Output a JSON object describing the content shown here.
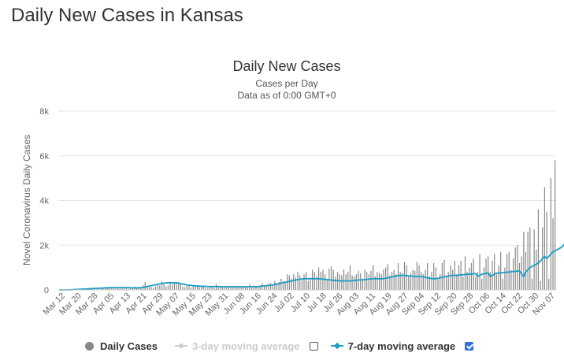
{
  "page": {
    "title": "Daily New Cases in Kansas"
  },
  "chart_data": {
    "type": "bar",
    "title": "Daily New Cases",
    "subtitle": "Cases per Day",
    "subtitle2": "Data as of 0:00 GMT+0",
    "ylabel": "Novel Coronavirus Daily Cases",
    "xlabel": "",
    "ylim": [
      0,
      8000
    ],
    "yticks": [
      0,
      2000,
      4000,
      6000,
      8000
    ],
    "ytick_labels": [
      "0",
      "2k",
      "4k",
      "6k",
      "8k"
    ],
    "grid": true,
    "date_range": [
      "Mar 12",
      "Nov 12"
    ],
    "xtick_labels": [
      "Mar 12",
      "Mar 20",
      "Mar 28",
      "Apr 05",
      "Apr 13",
      "Apr 21",
      "Apr 29",
      "May 07",
      "May 15",
      "May 23",
      "May 31",
      "Jun 08",
      "Jun 16",
      "Jun 24",
      "Jul 02",
      "Jul 10",
      "Jul 18",
      "Jul 26",
      "Aug 03",
      "Aug 11",
      "Aug 19",
      "Aug 27",
      "Sep 04",
      "Sep 12",
      "Sep 20",
      "Sep 28",
      "Oct 06",
      "Oct 14",
      "Oct 22",
      "Oct 30",
      "Nov 07"
    ],
    "series": [
      {
        "name": "Daily Cases",
        "type": "bar",
        "color": "#888888",
        "values": [
          0,
          0,
          0,
          0,
          0,
          10,
          15,
          20,
          25,
          30,
          40,
          45,
          50,
          60,
          55,
          65,
          70,
          80,
          85,
          90,
          95,
          100,
          105,
          110,
          90,
          120,
          100,
          110,
          90,
          85,
          100,
          120,
          110,
          60,
          80,
          90,
          150,
          120,
          100,
          80,
          200,
          350,
          180,
          120,
          130,
          100,
          150,
          250,
          200,
          400,
          300,
          150,
          200,
          350,
          250,
          300,
          320,
          350,
          250,
          150,
          120,
          180,
          200,
          100,
          180,
          150,
          220,
          120,
          200,
          140,
          90,
          80,
          120,
          150,
          100,
          250,
          130,
          170,
          120,
          110,
          150,
          110,
          150,
          120,
          100,
          120,
          160,
          130,
          150,
          140,
          110,
          250,
          130,
          200,
          120,
          150,
          200,
          300,
          160,
          220,
          250,
          300,
          200,
          400,
          300,
          350,
          500,
          400,
          350,
          700,
          650,
          500,
          700,
          550,
          800,
          650,
          450,
          700,
          800,
          400,
          550,
          900,
          800,
          600,
          1000,
          800,
          900,
          700,
          500,
          950,
          1050,
          900,
          600,
          800,
          700,
          650,
          900,
          700,
          800,
          1100,
          650,
          600,
          700,
          850,
          750,
          500,
          900,
          800,
          700,
          850,
          1100,
          600,
          800,
          750,
          700,
          900,
          1000,
          1150,
          650,
          800,
          900,
          700,
          1200,
          800,
          750,
          1250,
          1100,
          650,
          750,
          900,
          850,
          1250,
          1100,
          800,
          700,
          900,
          1200,
          600,
          800,
          1200,
          1000,
          500,
          700,
          1200,
          1350,
          600,
          800,
          1100,
          900,
          1300,
          700,
          1100,
          1300,
          600,
          1500,
          800,
          1000,
          1200,
          1400,
          600,
          800,
          1600,
          500,
          1000,
          1400,
          1500,
          800,
          1300,
          1600,
          700,
          1100,
          1700,
          500,
          1000,
          1600,
          1700,
          900,
          1400,
          1900,
          2000,
          1200,
          1500,
          2600,
          1700,
          2600,
          2800,
          500,
          2700,
          1800,
          3600,
          400,
          2800,
          4600,
          3500,
          500,
          5000,
          3200,
          5800
        ]
      },
      {
        "name": "3-day moving average",
        "type": "line",
        "color": "#cccccc",
        "visible": false
      },
      {
        "name": "7-day moving average",
        "type": "line",
        "color": "#1a9dc4",
        "values": [
          0,
          0,
          0,
          0,
          0,
          5,
          10,
          15,
          20,
          25,
          30,
          35,
          40,
          45,
          50,
          55,
          60,
          65,
          70,
          75,
          80,
          85,
          90,
          95,
          95,
          100,
          100,
          100,
          100,
          100,
          100,
          100,
          100,
          100,
          95,
          90,
          90,
          90,
          95,
          100,
          110,
          130,
          150,
          170,
          190,
          210,
          230,
          250,
          270,
          290,
          300,
          310,
          320,
          320,
          320,
          320,
          320,
          300,
          280,
          260,
          240,
          220,
          210,
          200,
          190,
          180,
          170,
          170,
          160,
          160,
          155,
          150,
          150,
          150,
          150,
          150,
          150,
          145,
          140,
          140,
          140,
          140,
          140,
          140,
          140,
          140,
          140,
          140,
          140,
          140,
          140,
          140,
          140,
          140,
          145,
          150,
          160,
          170,
          180,
          190,
          200,
          210,
          220,
          240,
          260,
          280,
          300,
          320,
          340,
          360,
          380,
          400,
          420,
          440,
          460,
          480,
          490,
          500,
          500,
          500,
          500,
          500,
          500,
          500,
          500,
          490,
          480,
          470,
          460,
          450,
          440,
          430,
          420,
          410,
          400,
          400,
          400,
          400,
          400,
          400,
          410,
          420,
          430,
          440,
          450,
          450,
          460,
          470,
          480,
          490,
          500,
          500,
          500,
          500,
          500,
          500,
          520,
          540,
          560,
          580,
          600,
          620,
          640,
          650,
          650,
          650,
          640,
          630,
          620,
          610,
          600,
          600,
          600,
          600,
          580,
          560,
          540,
          520,
          500,
          500,
          500,
          520,
          540,
          560,
          580,
          600,
          620,
          640,
          650,
          650,
          650,
          660,
          670,
          680,
          690,
          700,
          700,
          710,
          720,
          730,
          600,
          650,
          700,
          720,
          740,
          760,
          600,
          650,
          700,
          750,
          750,
          760,
          770,
          780,
          790,
          800,
          810,
          820,
          830,
          840,
          850,
          700,
          600,
          800,
          900,
          1000,
          1050,
          1100,
          1150,
          1200,
          1300,
          1400,
          1500,
          1400,
          1500,
          1600,
          1700,
          1750,
          1800,
          1850,
          1900,
          2000,
          2100,
          2200,
          2300,
          2400
        ]
      }
    ],
    "legend": {
      "placement": "bottom",
      "items": [
        {
          "label": "Daily Cases",
          "enabled": true
        },
        {
          "label": "3-day moving average",
          "enabled": false,
          "checked": false
        },
        {
          "label": "7-day moving average",
          "enabled": true,
          "checked": true
        }
      ]
    }
  }
}
